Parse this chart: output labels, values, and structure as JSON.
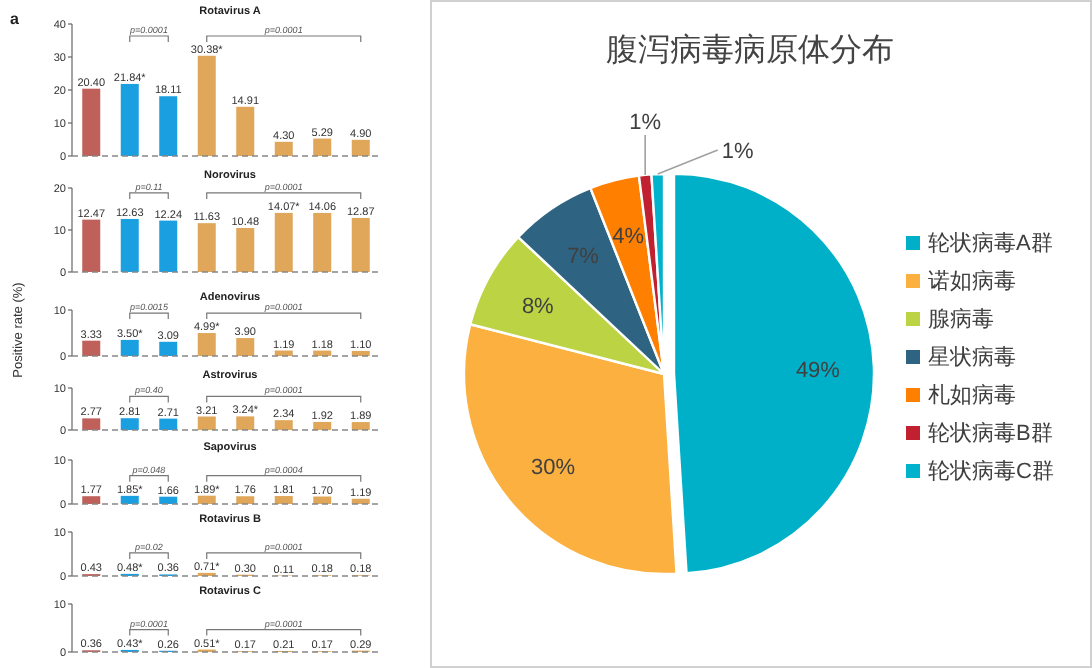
{
  "chart_data": [
    {
      "type": "bar",
      "title": "Rotavirus A",
      "categories": [
        null,
        null,
        null,
        null,
        null,
        null,
        null,
        null
      ],
      "values": [
        20.4,
        21.84,
        18.11,
        30.38,
        14.91,
        4.3,
        5.29,
        4.9
      ],
      "value_labels": [
        "20.40",
        "21.84*",
        "18.11",
        "30.38*",
        "14.91",
        "4.30",
        "5.29",
        "4.90"
      ],
      "colors": [
        "#c0605a",
        "#1a9fe0",
        "#1a9fe0",
        "#e0a75a",
        "#e0a75a",
        "#e0a75a",
        "#e0a75a",
        "#e0a75a"
      ],
      "ylim": [
        0,
        40
      ],
      "yticks": [
        0,
        10,
        20,
        30,
        40
      ],
      "annotations": [
        "p=0.0001",
        "p=0.0001",
        "a"
      ]
    },
    {
      "type": "bar",
      "title": "Norovirus",
      "categories": [
        null,
        null,
        null,
        null,
        null,
        null,
        null,
        null
      ],
      "values": [
        12.47,
        12.63,
        12.24,
        11.63,
        10.48,
        14.07,
        14.06,
        12.87
      ],
      "value_labels": [
        "12.47",
        "12.63",
        "12.24",
        "11.63",
        "10.48",
        "14.07*",
        "14.06",
        "12.87"
      ],
      "colors": [
        "#c0605a",
        "#1a9fe0",
        "#1a9fe0",
        "#e0a75a",
        "#e0a75a",
        "#e0a75a",
        "#e0a75a",
        "#e0a75a"
      ],
      "ylim": [
        0,
        20
      ],
      "yticks": [
        0,
        10,
        20
      ],
      "annotations": [
        "p=0.11",
        "p=0.0001"
      ]
    },
    {
      "type": "bar",
      "title": "Adenovirus",
      "ylabel": "Positive rate (%)",
      "categories": [
        null,
        null,
        null,
        null,
        null,
        null,
        null,
        null
      ],
      "values": [
        3.33,
        3.5,
        3.09,
        4.99,
        3.9,
        1.19,
        1.18,
        1.1
      ],
      "value_labels": [
        "3.33",
        "3.50*",
        "3.09",
        "4.99*",
        "3.90",
        "1.19",
        "1.18",
        "1.10"
      ],
      "colors": [
        "#c0605a",
        "#1a9fe0",
        "#1a9fe0",
        "#e0a75a",
        "#e0a75a",
        "#e0a75a",
        "#e0a75a",
        "#e0a75a"
      ],
      "ylim": [
        0,
        10
      ],
      "yticks": [
        0,
        10
      ],
      "annotations": [
        "p=0.0015",
        "p=0.0001"
      ]
    },
    {
      "type": "bar",
      "title": "Astrovirus",
      "categories": [
        null,
        null,
        null,
        null,
        null,
        null,
        null,
        null
      ],
      "values": [
        2.77,
        2.81,
        2.71,
        3.21,
        3.24,
        2.34,
        1.92,
        1.89
      ],
      "value_labels": [
        "2.77",
        "2.81",
        "2.71",
        "3.21",
        "3.24*",
        "2.34",
        "1.92",
        "1.89"
      ],
      "colors": [
        "#c0605a",
        "#1a9fe0",
        "#1a9fe0",
        "#e0a75a",
        "#e0a75a",
        "#e0a75a",
        "#e0a75a",
        "#e0a75a"
      ],
      "ylim": [
        0,
        10
      ],
      "yticks": [
        0,
        10
      ],
      "annotations": [
        "p=0.40",
        "p=0.0001"
      ]
    },
    {
      "type": "bar",
      "title": "Sapovirus",
      "categories": [
        null,
        null,
        null,
        null,
        null,
        null,
        null,
        null
      ],
      "values": [
        1.77,
        1.85,
        1.66,
        1.89,
        1.76,
        1.81,
        1.7,
        1.19
      ],
      "value_labels": [
        "1.77",
        "1.85*",
        "1.66",
        "1.89*",
        "1.76",
        "1.81",
        "1.70",
        "1.19"
      ],
      "colors": [
        "#c0605a",
        "#1a9fe0",
        "#1a9fe0",
        "#e0a75a",
        "#e0a75a",
        "#e0a75a",
        "#e0a75a",
        "#e0a75a"
      ],
      "ylim": [
        0,
        10
      ],
      "yticks": [
        0,
        10
      ],
      "annotations": [
        "p=0.048",
        "p=0.0004"
      ]
    },
    {
      "type": "bar",
      "title": "Rotavirus B",
      "categories": [
        null,
        null,
        null,
        null,
        null,
        null,
        null,
        null
      ],
      "values": [
        0.43,
        0.48,
        0.36,
        0.71,
        0.3,
        0.11,
        0.18,
        0.18
      ],
      "value_labels": [
        "0.43",
        "0.48*",
        "0.36",
        "0.71*",
        "0.30",
        "0.11",
        "0.18",
        "0.18"
      ],
      "colors": [
        "#c0605a",
        "#1a9fe0",
        "#1a9fe0",
        "#e0a75a",
        "#e0a75a",
        "#e0a75a",
        "#e0a75a",
        "#e0a75a"
      ],
      "ylim": [
        0,
        10
      ],
      "yticks": [
        0,
        10
      ],
      "annotations": [
        "p=0.02",
        "p=0.0001"
      ]
    },
    {
      "type": "bar",
      "title": "Rotavirus C",
      "categories": [
        null,
        null,
        null,
        null,
        null,
        null,
        null,
        null
      ],
      "values": [
        0.36,
        0.43,
        0.26,
        0.51,
        0.17,
        0.21,
        0.17,
        0.29
      ],
      "value_labels": [
        "0.36",
        "0.43*",
        "0.26",
        "0.51*",
        "0.17",
        "0.21",
        "0.17",
        "0.29"
      ],
      "colors": [
        "#c0605a",
        "#1a9fe0",
        "#1a9fe0",
        "#e0a75a",
        "#e0a75a",
        "#e0a75a",
        "#e0a75a",
        "#e0a75a"
      ],
      "ylim": [
        0,
        10
      ],
      "yticks": [
        0,
        10
      ],
      "annotations": [
        "p=0.0001",
        "p=0.0001"
      ]
    },
    {
      "type": "pie",
      "title": "腹泻病毒病原体分布",
      "categories": [
        "轮状病毒A群",
        "诺如病毒",
        "腺病毒",
        "星状病毒",
        "札如病毒",
        "轮状病毒B群",
        "轮状病毒C群"
      ],
      "values": [
        49,
        30,
        8,
        7,
        4,
        1,
        1
      ],
      "value_labels": [
        "49%",
        "30%",
        "8%",
        "7%",
        "4%",
        "1%",
        "1%"
      ],
      "colors": [
        "#00b0c9",
        "#fbb040",
        "#bcd444",
        "#2e6482",
        "#ff7f00",
        "#c0202f",
        "#00b2cc"
      ],
      "legend": "right"
    }
  ]
}
